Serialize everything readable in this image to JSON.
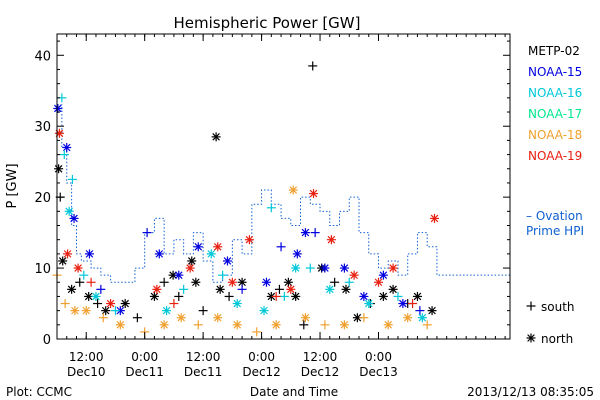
{
  "chart_data": {
    "type": "scatter",
    "title": "Hemispheric Power [GW]",
    "ylabel": "P [GW]",
    "xlabel": "Date and Time",
    "ylim": [
      0,
      43
    ],
    "xlim": [
      "2013-12-10T06:00",
      "2013-12-14T03:00"
    ],
    "yticks": [
      0,
      10,
      20,
      30,
      40
    ],
    "xticks": [
      {
        "t": "2013-12-10T12:00",
        "top": "12:00",
        "bottom": "Dec10"
      },
      {
        "t": "2013-12-11T00:00",
        "top": "0:00",
        "bottom": "Dec11"
      },
      {
        "t": "2013-12-11T12:00",
        "top": "12:00",
        "bottom": "Dec11"
      },
      {
        "t": "2013-12-12T00:00",
        "top": "0:00",
        "bottom": "Dec12"
      },
      {
        "t": "2013-12-12T12:00",
        "top": "12:00",
        "bottom": "Dec12"
      },
      {
        "t": "2013-12-13T00:00",
        "top": "0:00",
        "bottom": "Dec13"
      }
    ],
    "legend_position": "right",
    "series": [
      {
        "name": "METP-02",
        "color": "#000000",
        "points": [
          {
            "x": "2013-12-10T06:20",
            "y": 24,
            "m": "north"
          },
          {
            "x": "2013-12-10T06:40",
            "y": 20,
            "m": "south"
          },
          {
            "x": "2013-12-10T07:10",
            "y": 11,
            "m": "north"
          },
          {
            "x": "2013-12-10T09:00",
            "y": 7,
            "m": "north"
          },
          {
            "x": "2013-12-10T10:40",
            "y": 8,
            "m": "south"
          },
          {
            "x": "2013-12-10T12:30",
            "y": 6,
            "m": "north"
          },
          {
            "x": "2013-12-10T14:20",
            "y": 5,
            "m": "south"
          },
          {
            "x": "2013-12-10T16:00",
            "y": 4,
            "m": "north"
          },
          {
            "x": "2013-12-10T20:00",
            "y": 5,
            "m": "north"
          },
          {
            "x": "2013-12-10T22:30",
            "y": 3,
            "m": "south"
          },
          {
            "x": "2013-12-11T02:00",
            "y": 6,
            "m": "north"
          },
          {
            "x": "2013-12-11T04:00",
            "y": 8,
            "m": "south"
          },
          {
            "x": "2013-12-11T05:50",
            "y": 9,
            "m": "north"
          },
          {
            "x": "2013-12-11T07:00",
            "y": 6,
            "m": "south"
          },
          {
            "x": "2013-12-11T09:40",
            "y": 11,
            "m": "north"
          },
          {
            "x": "2013-12-11T10:30",
            "y": 8,
            "m": "north"
          },
          {
            "x": "2013-12-11T12:00",
            "y": 4,
            "m": "south"
          },
          {
            "x": "2013-12-11T14:40",
            "y": 28.5,
            "m": "north"
          },
          {
            "x": "2013-12-11T15:30",
            "y": 7,
            "m": "north"
          },
          {
            "x": "2013-12-11T17:20",
            "y": 6,
            "m": "south"
          },
          {
            "x": "2013-12-11T20:00",
            "y": 8,
            "m": "north"
          },
          {
            "x": "2013-12-12T02:00",
            "y": 6,
            "m": "north"
          },
          {
            "x": "2013-12-12T03:40",
            "y": 7,
            "m": "south"
          },
          {
            "x": "2013-12-12T05:30",
            "y": 8,
            "m": "north"
          },
          {
            "x": "2013-12-12T07:00",
            "y": 6,
            "m": "north"
          },
          {
            "x": "2013-12-12T08:40",
            "y": 2,
            "m": "south"
          },
          {
            "x": "2013-12-12T10:30",
            "y": 38.5,
            "m": "south"
          },
          {
            "x": "2013-12-12T12:20",
            "y": 10,
            "m": "north"
          },
          {
            "x": "2013-12-12T15:00",
            "y": 8,
            "m": "south"
          },
          {
            "x": "2013-12-12T17:20",
            "y": 7,
            "m": "north"
          },
          {
            "x": "2013-12-12T19:40",
            "y": 3,
            "m": "north"
          },
          {
            "x": "2013-12-12T22:20",
            "y": 5,
            "m": "south"
          },
          {
            "x": "2013-12-13T01:00",
            "y": 6,
            "m": "north"
          },
          {
            "x": "2013-12-13T03:00",
            "y": 7,
            "m": "north"
          },
          {
            "x": "2013-12-13T06:00",
            "y": 5,
            "m": "south"
          },
          {
            "x": "2013-12-13T08:00",
            "y": 6,
            "m": "north"
          },
          {
            "x": "2013-12-13T11:00",
            "y": 4,
            "m": "north"
          }
        ]
      },
      {
        "name": "NOAA-15",
        "color": "#0000e0",
        "points": [
          {
            "x": "2013-12-10T06:10",
            "y": 32.5,
            "m": "north"
          },
          {
            "x": "2013-12-10T08:00",
            "y": 27,
            "m": "north"
          },
          {
            "x": "2013-12-10T09:30",
            "y": 17,
            "m": "north"
          },
          {
            "x": "2013-12-10T12:40",
            "y": 12,
            "m": "north"
          },
          {
            "x": "2013-12-10T15:00",
            "y": 7,
            "m": "south"
          },
          {
            "x": "2013-12-10T19:00",
            "y": 4,
            "m": "north"
          },
          {
            "x": "2013-12-11T00:30",
            "y": 15,
            "m": "south"
          },
          {
            "x": "2013-12-11T03:00",
            "y": 12,
            "m": "north"
          },
          {
            "x": "2013-12-11T07:00",
            "y": 9,
            "m": "north"
          },
          {
            "x": "2013-12-11T11:00",
            "y": 13,
            "m": "north"
          },
          {
            "x": "2013-12-11T17:00",
            "y": 11,
            "m": "north"
          },
          {
            "x": "2013-12-11T20:00",
            "y": 7,
            "m": "south"
          },
          {
            "x": "2013-12-12T01:00",
            "y": 8,
            "m": "north"
          },
          {
            "x": "2013-12-12T04:00",
            "y": 13,
            "m": "south"
          },
          {
            "x": "2013-12-12T07:20",
            "y": 12,
            "m": "north"
          },
          {
            "x": "2013-12-12T09:00",
            "y": 15,
            "m": "north"
          },
          {
            "x": "2013-12-12T11:00",
            "y": 15,
            "m": "south"
          },
          {
            "x": "2013-12-12T13:00",
            "y": 10,
            "m": "north"
          },
          {
            "x": "2013-12-12T17:00",
            "y": 10,
            "m": "north"
          },
          {
            "x": "2013-12-12T21:00",
            "y": 6,
            "m": "north"
          },
          {
            "x": "2013-12-13T01:00",
            "y": 9,
            "m": "north"
          },
          {
            "x": "2013-12-13T05:00",
            "y": 5,
            "m": "north"
          },
          {
            "x": "2013-12-13T08:30",
            "y": 4,
            "m": "south"
          }
        ]
      },
      {
        "name": "NOAA-16",
        "color": "#00c8d8",
        "points": [
          {
            "x": "2013-12-10T07:00",
            "y": 34,
            "m": "south"
          },
          {
            "x": "2013-12-10T07:30",
            "y": 26,
            "m": "south"
          },
          {
            "x": "2013-12-10T08:30",
            "y": 18,
            "m": "north"
          },
          {
            "x": "2013-12-10T09:10",
            "y": 22.5,
            "m": "south"
          },
          {
            "x": "2013-12-10T11:30",
            "y": 9,
            "m": "south"
          },
          {
            "x": "2013-12-10T14:00",
            "y": 6,
            "m": "north"
          },
          {
            "x": "2013-12-10T18:00",
            "y": 4,
            "m": "south"
          },
          {
            "x": "2013-12-11T04:30",
            "y": 4,
            "m": "north"
          },
          {
            "x": "2013-12-11T08:00",
            "y": 7,
            "m": "south"
          },
          {
            "x": "2013-12-11T13:40",
            "y": 12,
            "m": "north"
          },
          {
            "x": "2013-12-11T16:00",
            "y": 9,
            "m": "south"
          },
          {
            "x": "2013-12-11T19:00",
            "y": 5,
            "m": "north"
          },
          {
            "x": "2013-12-12T00:30",
            "y": 4,
            "m": "north"
          },
          {
            "x": "2013-12-12T02:00",
            "y": 18.5,
            "m": "south"
          },
          {
            "x": "2013-12-12T04:40",
            "y": 6,
            "m": "south"
          },
          {
            "x": "2013-12-12T07:00",
            "y": 10,
            "m": "north"
          },
          {
            "x": "2013-12-12T10:00",
            "y": 10,
            "m": "south"
          },
          {
            "x": "2013-12-12T14:00",
            "y": 7,
            "m": "north"
          },
          {
            "x": "2013-12-12T18:00",
            "y": 8,
            "m": "south"
          },
          {
            "x": "2013-12-12T22:00",
            "y": 5,
            "m": "north"
          },
          {
            "x": "2013-12-13T04:00",
            "y": 6,
            "m": "south"
          },
          {
            "x": "2013-12-13T09:00",
            "y": 3,
            "m": "north"
          }
        ]
      },
      {
        "name": "NOAA-17",
        "color": "#00e890",
        "points": []
      },
      {
        "name": "NOAA-18",
        "color": "#f0a030",
        "points": [
          {
            "x": "2013-12-10T06:00",
            "y": 9,
            "m": "south"
          },
          {
            "x": "2013-12-10T07:40",
            "y": 5,
            "m": "south"
          },
          {
            "x": "2013-12-10T09:40",
            "y": 4,
            "m": "north"
          },
          {
            "x": "2013-12-10T12:00",
            "y": 4,
            "m": "north"
          },
          {
            "x": "2013-12-10T15:30",
            "y": 3,
            "m": "south"
          },
          {
            "x": "2013-12-10T19:00",
            "y": 2,
            "m": "north"
          },
          {
            "x": "2013-12-11T00:00",
            "y": 1,
            "m": "south"
          },
          {
            "x": "2013-12-11T04:00",
            "y": 2,
            "m": "north"
          },
          {
            "x": "2013-12-11T07:30",
            "y": 3,
            "m": "north"
          },
          {
            "x": "2013-12-11T11:00",
            "y": 2,
            "m": "south"
          },
          {
            "x": "2013-12-11T15:00",
            "y": 3,
            "m": "north"
          },
          {
            "x": "2013-12-11T19:00",
            "y": 2,
            "m": "north"
          },
          {
            "x": "2013-12-11T23:00",
            "y": 1,
            "m": "south"
          },
          {
            "x": "2013-12-12T03:00",
            "y": 2,
            "m": "north"
          },
          {
            "x": "2013-12-12T06:30",
            "y": 21,
            "m": "north"
          },
          {
            "x": "2013-12-12T09:00",
            "y": 3,
            "m": "north"
          },
          {
            "x": "2013-12-12T13:00",
            "y": 2,
            "m": "south"
          },
          {
            "x": "2013-12-12T17:00",
            "y": 2,
            "m": "north"
          },
          {
            "x": "2013-12-12T21:00",
            "y": 3,
            "m": "south"
          },
          {
            "x": "2013-12-13T02:00",
            "y": 2,
            "m": "north"
          },
          {
            "x": "2013-12-13T06:00",
            "y": 3,
            "m": "north"
          },
          {
            "x": "2013-12-13T10:00",
            "y": 2,
            "m": "south"
          }
        ]
      },
      {
        "name": "NOAA-19",
        "color": "#e82010",
        "points": [
          {
            "x": "2013-12-10T06:30",
            "y": 29,
            "m": "north"
          },
          {
            "x": "2013-12-10T08:10",
            "y": 12,
            "m": "north"
          },
          {
            "x": "2013-12-10T10:20",
            "y": 10,
            "m": "north"
          },
          {
            "x": "2013-12-10T13:00",
            "y": 8,
            "m": "south"
          },
          {
            "x": "2013-12-10T17:00",
            "y": 5,
            "m": "north"
          },
          {
            "x": "2013-12-11T02:30",
            "y": 7,
            "m": "north"
          },
          {
            "x": "2013-12-11T06:00",
            "y": 5,
            "m": "south"
          },
          {
            "x": "2013-12-11T09:20",
            "y": 10,
            "m": "north"
          },
          {
            "x": "2013-12-11T15:00",
            "y": 13,
            "m": "north"
          },
          {
            "x": "2013-12-11T18:00",
            "y": 8,
            "m": "north"
          },
          {
            "x": "2013-12-11T21:30",
            "y": 14,
            "m": "north"
          },
          {
            "x": "2013-12-12T03:00",
            "y": 6,
            "m": "south"
          },
          {
            "x": "2013-12-12T06:00",
            "y": 7,
            "m": "north"
          },
          {
            "x": "2013-12-12T10:40",
            "y": 20.5,
            "m": "north"
          },
          {
            "x": "2013-12-12T14:20",
            "y": 14,
            "m": "north"
          },
          {
            "x": "2013-12-12T19:00",
            "y": 9,
            "m": "north"
          },
          {
            "x": "2013-12-13T00:00",
            "y": 8,
            "m": "north"
          },
          {
            "x": "2013-12-13T03:00",
            "y": 10,
            "m": "north"
          },
          {
            "x": "2013-12-13T07:00",
            "y": 5,
            "m": "south"
          },
          {
            "x": "2013-12-13T11:30",
            "y": 17,
            "m": "north"
          }
        ]
      },
      {
        "name": "Ovation Prime HPI",
        "color": "#1060d0",
        "style": "dotted-step",
        "points": [
          {
            "x": "2013-12-10T06:00",
            "y": 33
          },
          {
            "x": "2013-12-10T07:00",
            "y": 27
          },
          {
            "x": "2013-12-10T08:00",
            "y": 22
          },
          {
            "x": "2013-12-10T09:00",
            "y": 16
          },
          {
            "x": "2013-12-10T10:00",
            "y": 12
          },
          {
            "x": "2013-12-10T11:00",
            "y": 11
          },
          {
            "x": "2013-12-10T13:00",
            "y": 10
          },
          {
            "x": "2013-12-10T15:00",
            "y": 9
          },
          {
            "x": "2013-12-10T17:00",
            "y": 8
          },
          {
            "x": "2013-12-10T20:00",
            "y": 8
          },
          {
            "x": "2013-12-10T22:00",
            "y": 10
          },
          {
            "x": "2013-12-11T00:00",
            "y": 15
          },
          {
            "x": "2013-12-11T02:00",
            "y": 17
          },
          {
            "x": "2013-12-11T04:00",
            "y": 12
          },
          {
            "x": "2013-12-11T06:00",
            "y": 14
          },
          {
            "x": "2013-12-11T08:00",
            "y": 12
          },
          {
            "x": "2013-12-11T10:00",
            "y": 15
          },
          {
            "x": "2013-12-11T12:00",
            "y": 11
          },
          {
            "x": "2013-12-11T14:00",
            "y": 8
          },
          {
            "x": "2013-12-11T16:00",
            "y": 9
          },
          {
            "x": "2013-12-11T18:00",
            "y": 14
          },
          {
            "x": "2013-12-11T20:00",
            "y": 12
          },
          {
            "x": "2013-12-11T22:00",
            "y": 19
          },
          {
            "x": "2013-12-12T00:00",
            "y": 21
          },
          {
            "x": "2013-12-12T02:00",
            "y": 19
          },
          {
            "x": "2013-12-12T04:00",
            "y": 17
          },
          {
            "x": "2013-12-12T06:00",
            "y": 16
          },
          {
            "x": "2013-12-12T08:00",
            "y": 20
          },
          {
            "x": "2013-12-12T10:00",
            "y": 19
          },
          {
            "x": "2013-12-12T12:00",
            "y": 18
          },
          {
            "x": "2013-12-12T14:00",
            "y": 16
          },
          {
            "x": "2013-12-12T16:00",
            "y": 18
          },
          {
            "x": "2013-12-12T18:00",
            "y": 20
          },
          {
            "x": "2013-12-12T20:00",
            "y": 15
          },
          {
            "x": "2013-12-12T22:00",
            "y": 12
          },
          {
            "x": "2013-12-13T00:00",
            "y": 10
          },
          {
            "x": "2013-12-13T02:00",
            "y": 11
          },
          {
            "x": "2013-12-13T04:00",
            "y": 9
          },
          {
            "x": "2013-12-13T06:00",
            "y": 12
          },
          {
            "x": "2013-12-13T08:00",
            "y": 15
          },
          {
            "x": "2013-12-13T10:00",
            "y": 13
          },
          {
            "x": "2013-12-13T12:00",
            "y": 9
          }
        ]
      }
    ],
    "legend": [
      "METP-02",
      "NOAA-15",
      "NOAA-16",
      "NOAA-17",
      "NOAA-18",
      "NOAA-19"
    ],
    "ovation_label_1": "– Ovation",
    "ovation_label_2": "Prime HPI",
    "marker_key": [
      {
        "symbol": "+",
        "label": "south"
      },
      {
        "symbol": "*",
        "label": "north"
      }
    ]
  },
  "footer": {
    "plot_credit": "Plot: CCMC",
    "timestamp": "2013/12/13 08:35:05"
  }
}
